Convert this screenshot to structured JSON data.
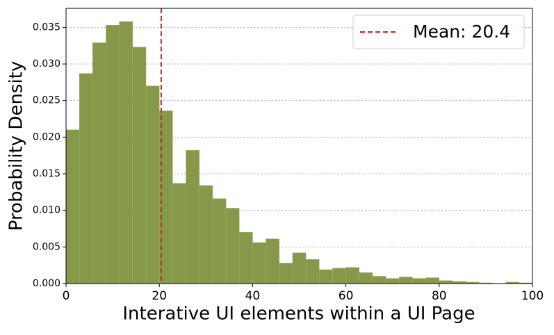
{
  "chart_data": {
    "type": "histogram",
    "xlabel": "Interative UI elements within a UI Page",
    "ylabel": "Probability Density",
    "bins": [
      0,
      2.86,
      5.71,
      8.57,
      11.43,
      14.29,
      17.14,
      20,
      22.86,
      25.71,
      28.57,
      31.43,
      34.29,
      37.14,
      40,
      42.86,
      45.71,
      48.57,
      51.43,
      54.29,
      57.14,
      60,
      62.86,
      65.71,
      68.57,
      71.43,
      74.29,
      77.14,
      80,
      82.86,
      85.71,
      88.57,
      91.43,
      94.29,
      97.14,
      100
    ],
    "values": [
      0.021,
      0.0287,
      0.0329,
      0.0353,
      0.0358,
      0.0323,
      0.027,
      0.0236,
      0.0137,
      0.0182,
      0.0134,
      0.0116,
      0.0103,
      0.007,
      0.0056,
      0.0061,
      0.0028,
      0.0042,
      0.0033,
      0.0019,
      0.0021,
      0.0022,
      0.0015,
      0.001,
      0.0007,
      0.0009,
      0.0007,
      0.0008,
      0.0004,
      0.0003,
      0.0002,
      0.0001,
      0.0,
      0.0002,
      0.0001
    ],
    "color": "#86994a",
    "mean": 20.4,
    "mean_label": "Mean: 20.4",
    "mean_color": "#e31a1c",
    "legend": "upper right",
    "xlim": [
      0,
      100
    ],
    "xticks": [
      0,
      20,
      40,
      60,
      80,
      100
    ],
    "ylim": [
      0,
      0.0376
    ],
    "yticks": [
      {
        "value": 0,
        "label": "0.000"
      },
      {
        "value": 0.005,
        "label": "0.005"
      },
      {
        "value": 0.01,
        "label": "0.010"
      },
      {
        "value": 0.015,
        "label": "0.015"
      },
      {
        "value": 0.02,
        "label": "0.020"
      },
      {
        "value": 0.025,
        "label": "0.025"
      },
      {
        "value": 0.03,
        "label": "0.030"
      },
      {
        "value": 0.035,
        "label": "0.035"
      }
    ],
    "grid": true
  }
}
